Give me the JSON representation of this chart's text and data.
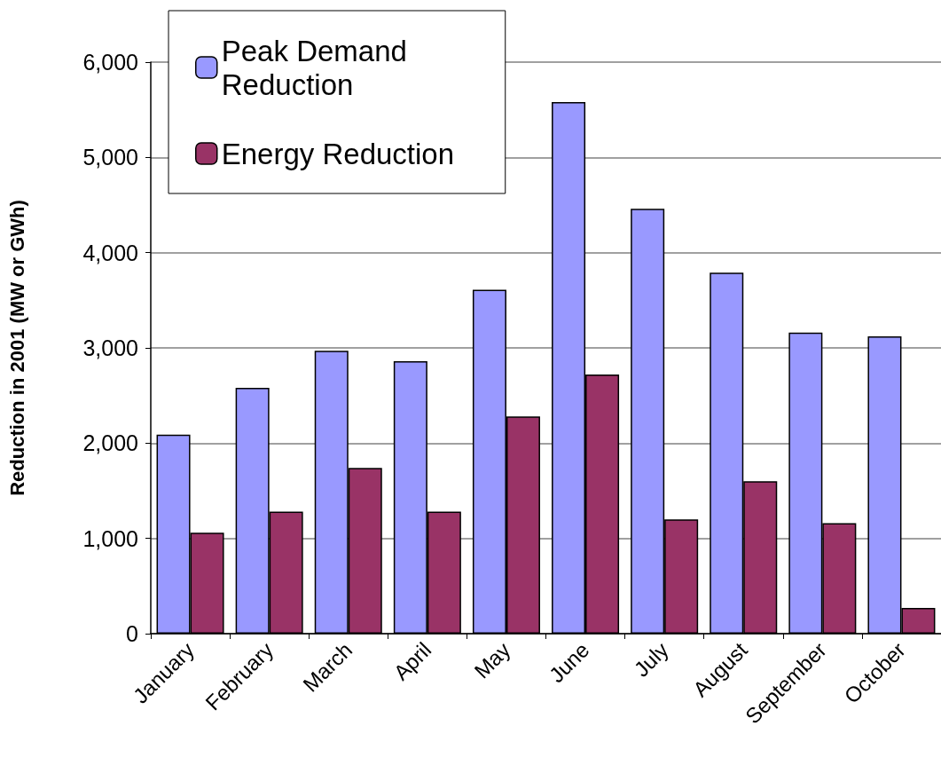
{
  "chart_data": {
    "type": "bar",
    "ylabel": "Reduction in 2001 (MW or GWh)",
    "categories": [
      "January",
      "February",
      "March",
      "April",
      "May",
      "June",
      "July",
      "August",
      "September",
      "October"
    ],
    "series": [
      {
        "name": "Peak Demand Reduction",
        "color": "#9999ff",
        "values": [
          2090,
          2580,
          2970,
          2860,
          3610,
          5580,
          4460,
          3790,
          3160,
          3120
        ]
      },
      {
        "name": "Energy Reduction",
        "color": "#993366",
        "values": [
          1060,
          1280,
          1740,
          1280,
          2280,
          2720,
          1200,
          1600,
          1160,
          270
        ]
      }
    ],
    "ylim": [
      0,
      6000
    ],
    "yticks": [
      0,
      {
        "value": 1000,
        "label": "1,000"
      },
      {
        "value": 2000,
        "label": "2,000"
      },
      {
        "value": 3000,
        "label": "3,000"
      },
      {
        "value": 4000,
        "label": "4,000"
      },
      {
        "value": 5000,
        "label": "5,000"
      },
      {
        "value": 6000,
        "label": "6,000"
      }
    ],
    "grid": "y",
    "legend": "top left"
  }
}
